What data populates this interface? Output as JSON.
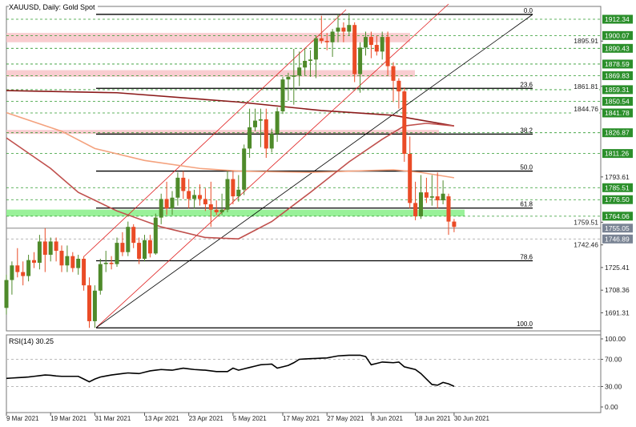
{
  "header": {
    "title": "XAUUSD, Daily:  Gold Spot"
  },
  "rsi_panel": {
    "label": "RSI(14) 30.25"
  },
  "colors": {
    "bull": "#4e8a2a",
    "bear": "#ea4b26",
    "level_green": "#2f9a2f",
    "label_green": "#2b8f2b",
    "label_gray": "#7a8494",
    "zone_pink": "#f8c4c8",
    "zone_green": "#8ef08e",
    "ma200": "#8b1a1a",
    "ma100": "#f4a27e",
    "ma50": "#c0504d",
    "channel": "#e02020",
    "trend": "#000000"
  },
  "chart_data": [
    {
      "type": "candlestick",
      "title": "XAUUSD, Daily:  Gold Spot",
      "ylim": [
        1672,
        1922
      ],
      "grid": false,
      "x_ticks": [
        "9 Mar 2021",
        "19 Mar 2021",
        "31 Mar 2021",
        "13 Apr 2021",
        "23 Apr 2021",
        "5 May 2021",
        "17 May 2021",
        "27 May 2021",
        "8 Jun 2021",
        "18 Jun 2021",
        "30 Jun 2021"
      ],
      "x_tick_bars": [
        0,
        8,
        16,
        25,
        33,
        41,
        50,
        58,
        66,
        74,
        81
      ],
      "y_ticks": [
        "1895.91",
        "1861.81",
        "1844.76",
        "1793.61",
        "1759.51",
        "1742.46",
        "1725.41",
        "1708.36",
        "1691.31"
      ],
      "ohlc": [
        [
          1695,
          1720,
          1690,
          1716
        ],
        [
          1716,
          1730,
          1705,
          1727
        ],
        [
          1727,
          1740,
          1718,
          1722
        ],
        [
          1722,
          1730,
          1712,
          1719
        ],
        [
          1719,
          1735,
          1715,
          1731
        ],
        [
          1731,
          1737,
          1725,
          1729
        ],
        [
          1729,
          1750,
          1724,
          1745
        ],
        [
          1745,
          1755,
          1722,
          1735
        ],
        [
          1735,
          1748,
          1730,
          1745
        ],
        [
          1745,
          1748,
          1730,
          1738
        ],
        [
          1738,
          1742,
          1722,
          1727
        ],
        [
          1727,
          1742,
          1722,
          1734
        ],
        [
          1734,
          1737,
          1722,
          1725
        ],
        [
          1725,
          1735,
          1720,
          1732
        ],
        [
          1732,
          1734,
          1708,
          1712
        ],
        [
          1712,
          1718,
          1680,
          1685
        ],
        [
          1685,
          1712,
          1680,
          1708
        ],
        [
          1708,
          1732,
          1705,
          1728
        ],
        [
          1728,
          1738,
          1722,
          1729
        ],
        [
          1729,
          1734,
          1724,
          1728
        ],
        [
          1728,
          1748,
          1726,
          1744
        ],
        [
          1744,
          1752,
          1734,
          1737
        ],
        [
          1737,
          1760,
          1734,
          1756
        ],
        [
          1756,
          1758,
          1740,
          1744
        ],
        [
          1744,
          1748,
          1728,
          1732
        ],
        [
          1732,
          1750,
          1730,
          1746
        ],
        [
          1746,
          1750,
          1733,
          1736
        ],
        [
          1736,
          1766,
          1735,
          1763
        ],
        [
          1763,
          1781,
          1758,
          1777
        ],
        [
          1777,
          1790,
          1765,
          1770
        ],
        [
          1770,
          1783,
          1765,
          1778
        ],
        [
          1778,
          1797,
          1772,
          1793
        ],
        [
          1793,
          1798,
          1777,
          1783
        ],
        [
          1783,
          1792,
          1770,
          1777
        ],
        [
          1777,
          1784,
          1770,
          1780
        ],
        [
          1780,
          1788,
          1772,
          1777
        ],
        [
          1777,
          1785,
          1768,
          1773
        ],
        [
          1773,
          1790,
          1756,
          1769
        ],
        [
          1769,
          1776,
          1765,
          1767
        ],
        [
          1767,
          1781,
          1765,
          1769
        ],
        [
          1769,
          1798,
          1767,
          1792
        ],
        [
          1792,
          1798,
          1773,
          1779
        ],
        [
          1779,
          1795,
          1775,
          1784
        ],
        [
          1784,
          1818,
          1780,
          1815
        ],
        [
          1815,
          1845,
          1808,
          1831
        ],
        [
          1831,
          1845,
          1828,
          1836
        ],
        [
          1836,
          1845,
          1816,
          1837
        ],
        [
          1837,
          1845,
          1808,
          1815
        ],
        [
          1815,
          1830,
          1812,
          1826
        ],
        [
          1826,
          1846,
          1820,
          1843
        ],
        [
          1843,
          1869,
          1841,
          1867
        ],
        [
          1867,
          1872,
          1851,
          1869
        ],
        [
          1869,
          1890,
          1848,
          1870
        ],
        [
          1870,
          1888,
          1862,
          1876
        ],
        [
          1876,
          1890,
          1870,
          1881
        ],
        [
          1881,
          1889,
          1869,
          1882
        ],
        [
          1882,
          1900,
          1868,
          1898
        ],
        [
          1898,
          1915,
          1894,
          1896
        ],
        [
          1896,
          1902,
          1889,
          1895
        ],
        [
          1895,
          1905,
          1884,
          1903
        ],
        [
          1903,
          1916,
          1895,
          1906
        ],
        [
          1906,
          1910,
          1895,
          1903
        ],
        [
          1903,
          1917,
          1900,
          1908
        ],
        [
          1908,
          1910,
          1865,
          1871
        ],
        [
          1871,
          1895,
          1857,
          1891
        ],
        [
          1891,
          1903,
          1885,
          1899
        ],
        [
          1899,
          1903,
          1883,
          1893
        ],
        [
          1893,
          1900,
          1885,
          1888
        ],
        [
          1888,
          1903,
          1882,
          1899
        ],
        [
          1899,
          1903,
          1870,
          1877
        ],
        [
          1877,
          1880,
          1850,
          1866
        ],
        [
          1866,
          1868,
          1845,
          1858
        ],
        [
          1858,
          1861,
          1805,
          1811
        ],
        [
          1811,
          1824,
          1770,
          1774
        ],
        [
          1774,
          1790,
          1761,
          1764
        ],
        [
          1764,
          1795,
          1762,
          1782
        ],
        [
          1782,
          1793,
          1774,
          1778
        ],
        [
          1778,
          1795,
          1772,
          1779
        ],
        [
          1779,
          1797,
          1770,
          1776
        ],
        [
          1776,
          1791,
          1773,
          1781
        ],
        [
          1779,
          1781,
          1750,
          1760
        ],
        [
          1760,
          1762,
          1752,
          1756
        ]
      ],
      "moving_averages": [
        {
          "key": "ma200",
          "points": [
            [
              0,
              1858.6
            ],
            [
              20,
              1857
            ],
            [
              42,
              1850
            ],
            [
              57,
              1843.6
            ],
            [
              70,
              1840
            ],
            [
              81,
              1832
            ]
          ]
        },
        {
          "key": "ma100",
          "points": [
            [
              0,
              1842
            ],
            [
              10,
              1828
            ],
            [
              16,
              1815
            ],
            [
              25,
              1806
            ],
            [
              35,
              1800
            ],
            [
              42,
              1798
            ],
            [
              55,
              1797
            ],
            [
              70,
              1799
            ],
            [
              75,
              1797
            ],
            [
              81,
              1793
            ]
          ]
        },
        {
          "key": "ma50",
          "points": [
            [
              0,
              1823
            ],
            [
              8,
              1800
            ],
            [
              13,
              1782
            ],
            [
              20,
              1768
            ],
            [
              28,
              1756
            ],
            [
              36,
              1748
            ],
            [
              42,
              1747
            ],
            [
              48,
              1760
            ],
            [
              55,
              1782
            ],
            [
              62,
              1805
            ],
            [
              68,
              1822
            ],
            [
              72,
              1832
            ],
            [
              76,
              1834
            ],
            [
              81,
              1832
            ]
          ]
        }
      ],
      "price_levels": [
        "1912.34",
        "1900.07",
        "1890.43",
        "1878.59",
        "1869.83",
        "1859.31",
        "1850.54",
        "1841.78",
        "1826.87",
        "1811.26",
        "1785.51",
        "1776.50",
        "1764.06"
      ],
      "gray_levels": [
        "1755.05",
        "1746.89"
      ],
      "fibonacci": {
        "high": 1916,
        "low": 1680,
        "levels": [
          "0.0",
          "23.6",
          "38.2",
          "50.0",
          "61.8",
          "78.6",
          "100.0"
        ]
      },
      "zones": [
        {
          "color": "pink",
          "from": 1895,
          "to": 1902
        },
        {
          "color": "pink",
          "from": 1869,
          "to": 1874
        },
        {
          "color": "pink",
          "from": 1826,
          "to": 1829
        },
        {
          "color": "green",
          "from": 1764,
          "to": 1769
        }
      ]
    },
    {
      "type": "line",
      "title": "RSI(14) 30.25",
      "ylim": [
        0,
        100
      ],
      "y_ticks": [
        "100.00",
        "70.00",
        "30.00",
        "0.00"
      ],
      "levels": [
        70,
        30
      ],
      "values": [
        42,
        42.5,
        43,
        43.5,
        44,
        45,
        46,
        47,
        46.5,
        45.5,
        45,
        45,
        45,
        45,
        41,
        37,
        41,
        44,
        45.5,
        47,
        48,
        49,
        50,
        49.5,
        49,
        51,
        53,
        54,
        55,
        54.5,
        54,
        55.5,
        57,
        56,
        55,
        54.5,
        54,
        53,
        52,
        52,
        52,
        57,
        54,
        56,
        58,
        60,
        62,
        62.5,
        63,
        57,
        59,
        61,
        65,
        70,
        70.5,
        71,
        71.3,
        71.7,
        72,
        73.5,
        75,
        75.5,
        76,
        76,
        76,
        74,
        62,
        64,
        66,
        65.5,
        65,
        66,
        59,
        57,
        55,
        49,
        41,
        33,
        32,
        36,
        34,
        30.25
      ]
    }
  ]
}
